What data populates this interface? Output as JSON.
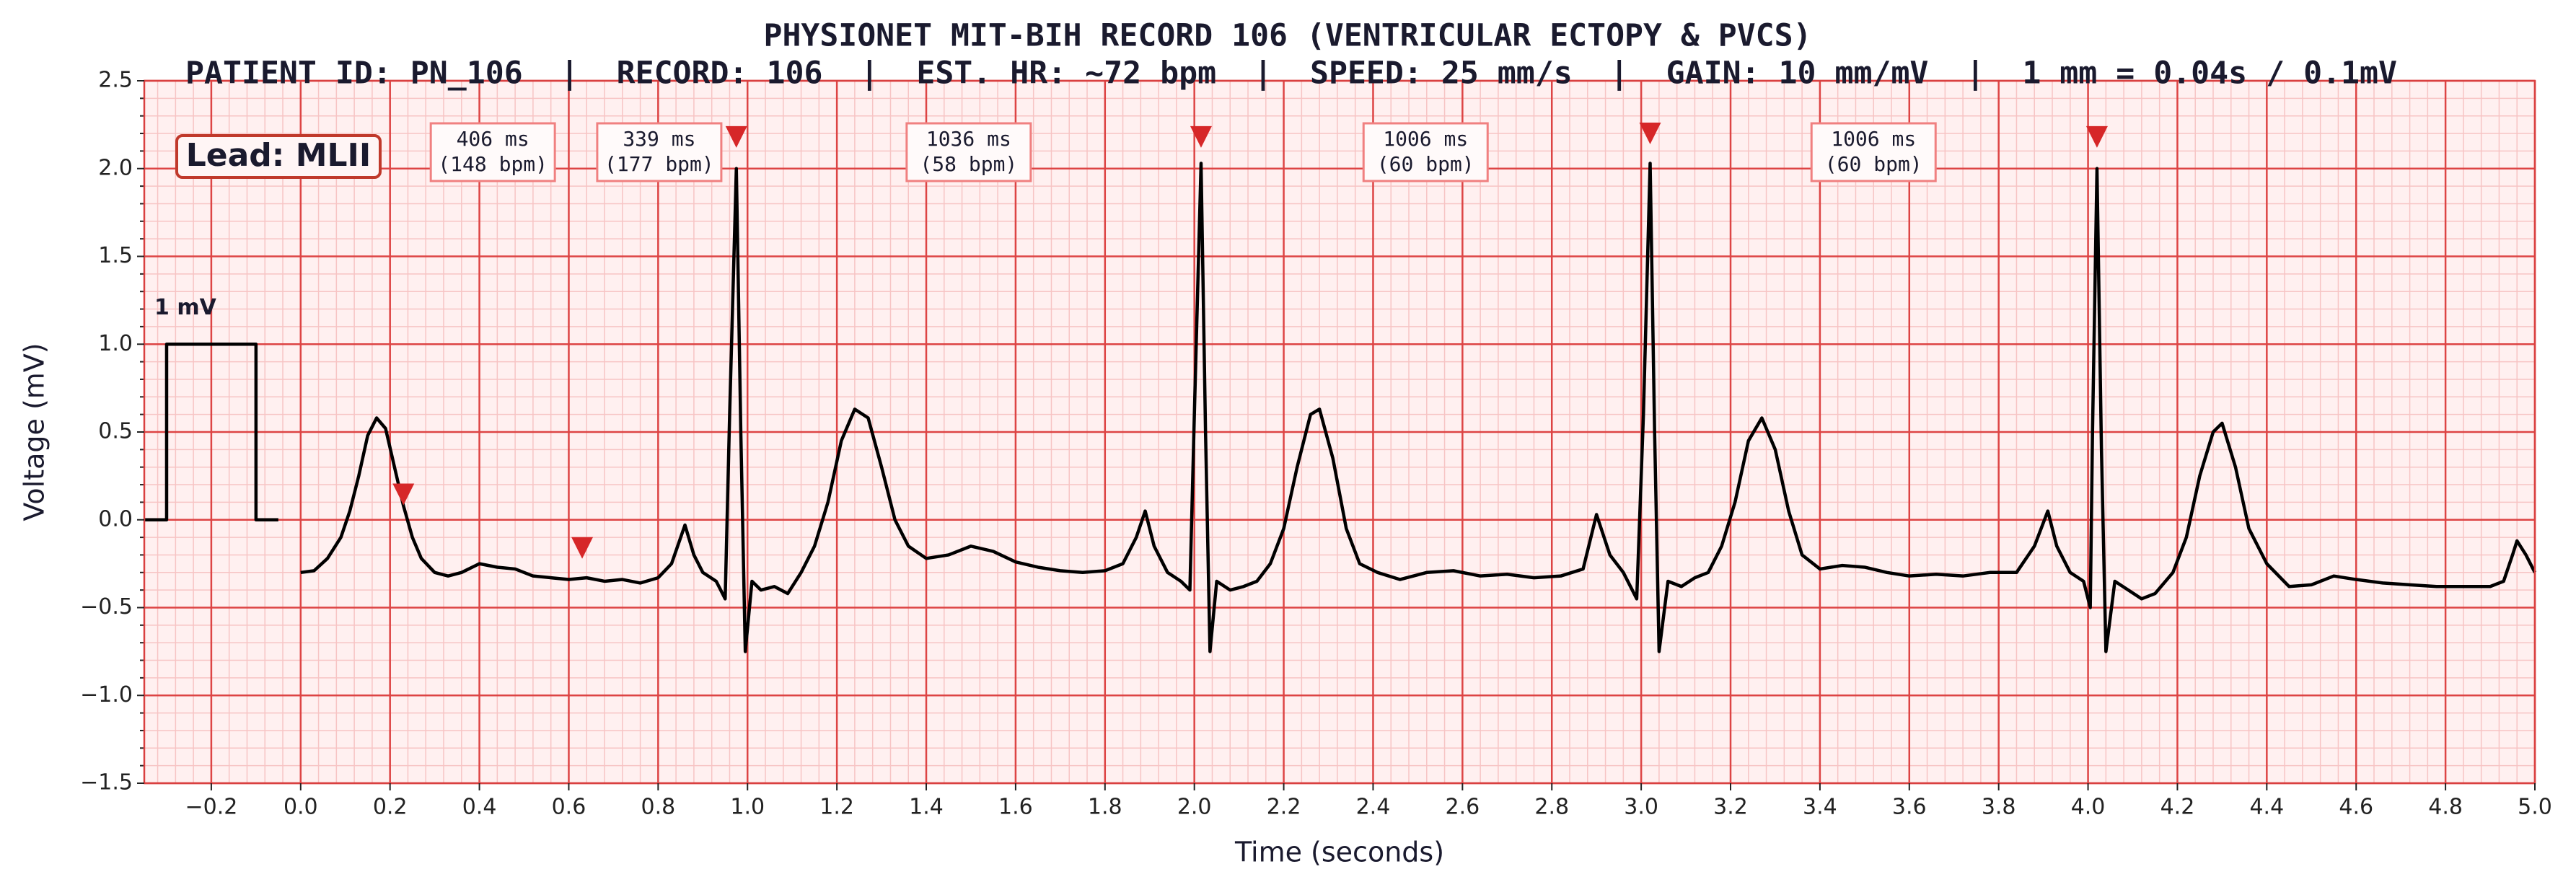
{
  "chart_data": {
    "type": "line",
    "title": "PHYSIONET MIT-BIH RECORD 106 (VENTRICULAR ECTOPY & PVCS)",
    "subtitle": "PATIENT ID: PN_106  |  RECORD: 106  |  EST. HR: ~72 bpm  |  SPEED: 25 mm/s  |  GAIN: 10 mm/mV  |  1 mm = 0.04s / 0.1mV",
    "xlabel": "Time (seconds)",
    "ylabel": "Voltage (mV)",
    "lead_label": "Lead: MLII",
    "xlim": [
      -0.35,
      5.0
    ],
    "ylim": [
      -1.5,
      2.5
    ],
    "xticks": [
      {
        "value": -0.2,
        "label": "−0.2"
      },
      {
        "value": 0,
        "label": "0.0"
      },
      0.2,
      0.4,
      0.6,
      0.8,
      {
        "value": 1,
        "label": "1.0"
      },
      1.2,
      1.4,
      1.6,
      1.8,
      {
        "value": 2,
        "label": "2.0"
      },
      2.2,
      2.4,
      2.6,
      2.8,
      {
        "value": 3,
        "label": "3.0"
      },
      3.2,
      3.4,
      3.6,
      3.8,
      {
        "value": 4,
        "label": "4.0"
      },
      4.2,
      4.4,
      4.6,
      4.8,
      {
        "value": 5,
        "label": "5.0"
      }
    ],
    "yticks": [
      {
        "value": -1.5,
        "label": "−1.5"
      },
      {
        "value": -1,
        "label": "−1.0"
      },
      {
        "value": -0.5,
        "label": "−0.5"
      },
      {
        "value": 0,
        "label": "0.0"
      },
      0.5,
      {
        "value": 1,
        "label": "1.0"
      },
      1.5,
      {
        "value": 2,
        "label": "2.0"
      },
      2.5
    ],
    "grid": true,
    "series": [
      {
        "color": "#000000",
        "x": [
          0.0,
          0.03,
          0.06,
          0.09,
          0.11,
          0.13,
          0.15,
          0.17,
          0.19,
          0.21,
          0.23,
          0.25,
          0.27,
          0.3,
          0.33,
          0.36,
          0.4,
          0.44,
          0.48,
          0.52,
          0.56,
          0.6,
          0.64,
          0.68,
          0.72,
          0.76,
          0.8,
          0.83,
          0.86,
          0.88,
          0.9,
          0.93,
          0.95,
          0.96,
          0.975,
          0.985,
          0.995,
          1.01,
          1.03,
          1.06,
          1.09,
          1.12,
          1.15,
          1.18,
          1.21,
          1.24,
          1.27,
          1.3,
          1.33,
          1.36,
          1.4,
          1.45,
          1.5,
          1.55,
          1.6,
          1.65,
          1.7,
          1.75,
          1.8,
          1.84,
          1.87,
          1.89,
          1.91,
          1.94,
          1.97,
          1.99,
          2.0,
          2.015,
          2.025,
          2.035,
          2.05,
          2.08,
          2.11,
          2.14,
          2.17,
          2.2,
          2.23,
          2.26,
          2.28,
          2.31,
          2.34,
          2.37,
          2.41,
          2.46,
          2.52,
          2.58,
          2.64,
          2.7,
          2.76,
          2.82,
          2.87,
          2.9,
          2.93,
          2.96,
          2.99,
          3.005,
          3.02,
          3.03,
          3.04,
          3.06,
          3.09,
          3.12,
          3.15,
          3.18,
          3.21,
          3.24,
          3.27,
          3.3,
          3.33,
          3.36,
          3.4,
          3.45,
          3.5,
          3.55,
          3.6,
          3.66,
          3.72,
          3.78,
          3.84,
          3.88,
          3.91,
          3.93,
          3.96,
          3.99,
          4.005,
          4.01,
          4.02,
          4.03,
          4.04,
          4.06,
          4.09,
          4.12,
          4.15,
          4.19,
          4.22,
          4.25,
          4.28,
          4.3,
          4.33,
          4.36,
          4.4,
          4.45,
          4.5,
          4.55,
          4.6,
          4.66,
          4.72,
          4.78,
          4.84,
          4.9,
          4.93,
          4.95,
          4.96,
          4.98,
          5.0
        ],
        "values": [
          -0.3,
          -0.29,
          -0.22,
          -0.1,
          0.05,
          0.25,
          0.48,
          0.58,
          0.52,
          0.3,
          0.08,
          -0.1,
          -0.22,
          -0.3,
          -0.32,
          -0.3,
          -0.25,
          -0.27,
          -0.28,
          -0.32,
          -0.33,
          -0.34,
          -0.33,
          -0.35,
          -0.34,
          -0.36,
          -0.33,
          -0.25,
          -0.03,
          -0.2,
          -0.3,
          -0.35,
          -0.45,
          0.6,
          2.0,
          0.5,
          -0.75,
          -0.35,
          -0.4,
          -0.38,
          -0.42,
          -0.3,
          -0.15,
          0.1,
          0.45,
          0.63,
          0.58,
          0.3,
          0.0,
          -0.15,
          -0.22,
          -0.2,
          -0.15,
          -0.18,
          -0.24,
          -0.27,
          -0.29,
          -0.3,
          -0.29,
          -0.25,
          -0.1,
          0.05,
          -0.15,
          -0.3,
          -0.35,
          -0.4,
          0.6,
          2.03,
          0.5,
          -0.75,
          -0.35,
          -0.4,
          -0.38,
          -0.35,
          -0.25,
          -0.05,
          0.3,
          0.6,
          0.63,
          0.35,
          -0.05,
          -0.25,
          -0.3,
          -0.34,
          -0.3,
          -0.29,
          -0.32,
          -0.31,
          -0.33,
          -0.32,
          -0.28,
          0.03,
          -0.2,
          -0.3,
          -0.45,
          0.6,
          2.03,
          0.5,
          -0.75,
          -0.35,
          -0.38,
          -0.33,
          -0.3,
          -0.15,
          0.1,
          0.45,
          0.58,
          0.4,
          0.05,
          -0.2,
          -0.28,
          -0.26,
          -0.27,
          -0.3,
          -0.32,
          -0.31,
          -0.32,
          -0.3,
          -0.3,
          -0.15,
          0.05,
          -0.15,
          -0.3,
          -0.35,
          -0.5,
          0.5,
          2.0,
          0.4,
          -0.75,
          -0.35,
          -0.4,
          -0.45,
          -0.42,
          -0.3,
          -0.1,
          0.25,
          0.5,
          0.55,
          0.3,
          -0.05,
          -0.25,
          -0.38,
          -0.37,
          -0.32,
          -0.34,
          -0.36,
          -0.37,
          -0.38,
          -0.38,
          -0.38,
          -0.35,
          -0.2,
          -0.12,
          -0.2,
          -0.3
        ]
      }
    ],
    "calibration": {
      "label": "1 mV",
      "color": "#000000",
      "x": [
        -0.35,
        -0.3,
        -0.3,
        -0.1,
        -0.1,
        -0.05
      ],
      "values": [
        0,
        0,
        1,
        1,
        0,
        0
      ]
    },
    "beat_markers": {
      "color": "#d62728",
      "x": [
        0.23,
        0.63,
        0.975,
        2.015,
        3.02,
        4.02
      ],
      "values": [
        0.145,
        -0.16,
        2.18,
        2.18,
        2.2,
        2.18
      ]
    },
    "interval_labels": [
      [
        "406 ms",
        "(148 bpm)"
      ],
      [
        "339 ms",
        "(177 bpm)"
      ],
      [
        "1036 ms",
        "(58 bpm)"
      ],
      [
        "1006 ms",
        "(60 bpm)"
      ],
      [
        "1006 ms",
        "(60 bpm)"
      ]
    ]
  }
}
